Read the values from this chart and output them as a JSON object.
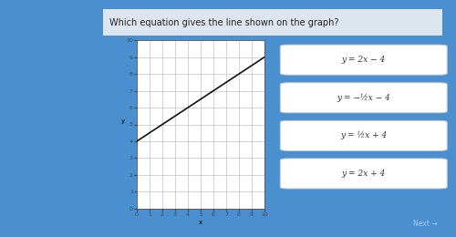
{
  "title": "Which equation gives the line shown on the graph?",
  "background_color": "#4a90d0",
  "card_bg": "#dde6ef",
  "button_bg": "#ffffff",
  "button_border": "#cccccc",
  "graph_bg": "#ffffff",
  "line_color": "#111111",
  "line_y_slope": 0.5,
  "line_y_intercept": 4,
  "xmin": 0,
  "xmax": 10,
  "ymin": 0,
  "ymax": 10,
  "options": [
    "y = 2x − 4",
    "y = −½x − 4",
    "y = ½x + 4",
    "y = 2x + 4"
  ],
  "next_label": "Next →",
  "grid_color": "#bbbbbb",
  "tick_color": "#444444",
  "title_fontsize": 7,
  "btn_fontsize": 6.5
}
